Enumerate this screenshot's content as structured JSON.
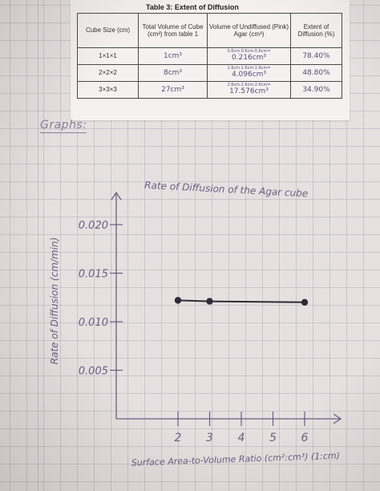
{
  "table": {
    "title": "Table 3: Extent of Diffusion",
    "headers": [
      "Cube Size (cm)",
      "Total Volume of Cube (cm³) from table 1",
      "Volume of Undiffused (Pink) Agar (cm³)",
      "Extent of Diffusion (%)"
    ],
    "rows": [
      {
        "size": "1×1×1",
        "total_volume": "1cm³",
        "undiffused_work": "0.6cm·0.6cm·0.6cm=",
        "undiffused": "0.216cm³",
        "extent": "78.40%"
      },
      {
        "size": "2×2×2",
        "total_volume": "8cm³",
        "undiffused_work": "1.6cm·1.6cm·1.6cm=",
        "undiffused": "4.096cm³",
        "extent": "48.80%"
      },
      {
        "size": "3×3×3",
        "total_volume": "27cm³",
        "undiffused_work": "2.6cm·2.6cm·2.6cm=",
        "undiffused": "17.576cm³",
        "extent": "34.90%"
      }
    ]
  },
  "graphs_heading": "Graphs:",
  "chart_data": {
    "type": "line",
    "title": "Rate of Diffusion of the Agar cube",
    "xlabel": "Surface Area-to-Volume Ratio (cm²:cm³) (1:cm)",
    "ylabel": "Rate of Diffusion (cm/min)",
    "x_ticks": [
      "2",
      "3",
      "4",
      "5",
      "6"
    ],
    "y_ticks": [
      "0.020",
      "0.015",
      "0.010",
      "0.005"
    ],
    "xlim": [
      1,
      6.5
    ],
    "ylim": [
      0,
      0.022
    ],
    "series": [
      {
        "x": [
          2,
          3,
          6
        ],
        "y": [
          0.0122,
          0.0121,
          0.012
        ]
      }
    ],
    "grid": true,
    "colors": {
      "ink": "#6e5e82",
      "line": "#2e2a36"
    }
  }
}
